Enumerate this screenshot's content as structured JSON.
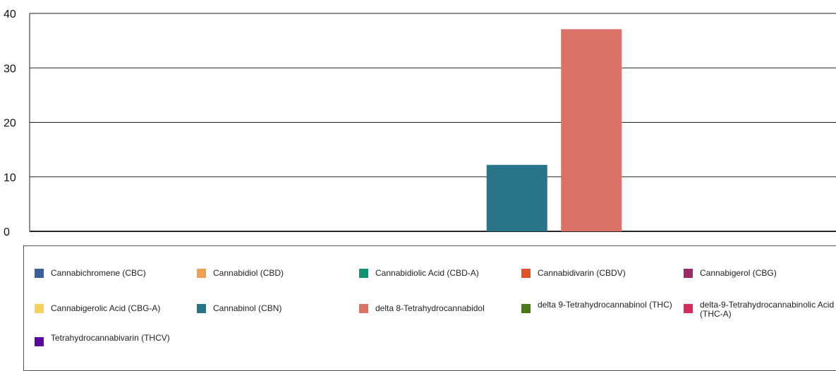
{
  "chart_data": {
    "type": "bar",
    "ylim": [
      0,
      40
    ],
    "yticks": [
      0,
      10,
      20,
      30,
      40
    ],
    "grid": true,
    "legend_position": "bottom",
    "series": [
      {
        "name": "Cannabichromene (CBC)",
        "color": "#3b5f99",
        "value": 0
      },
      {
        "name": "Cannabidiol (CBD)",
        "color": "#f0a050",
        "value": 0
      },
      {
        "name": "Cannabidiolic Acid (CBD-A)",
        "color": "#0e9474",
        "value": 0
      },
      {
        "name": "Cannabidivarin (CBDV)",
        "color": "#e0542a",
        "value": 0
      },
      {
        "name": "Cannabigerol (CBG)",
        "color": "#9b2c63",
        "value": 0
      },
      {
        "name": "Cannabigerolic Acid (CBG-A)",
        "color": "#f7d15e",
        "value": 0
      },
      {
        "name": "Cannabinol (CBN)",
        "color": "#28758a",
        "value": 12.2
      },
      {
        "name": "delta 8-Tetrahydrocannabidol",
        "color": "#db7265",
        "value": 37.1
      },
      {
        "name": "delta 9-Tetrahydrocannabinol (THC)",
        "color": "#4a7a18",
        "value": 0
      },
      {
        "name": "delta-9-Tetrahydrocannabinolic Acid (THC-A)",
        "color": "#d22c5d",
        "value": 0
      },
      {
        "name": "Tetrahydrocannabivarin (THCV)",
        "color": "#5a0a9c",
        "value": 0
      }
    ]
  }
}
